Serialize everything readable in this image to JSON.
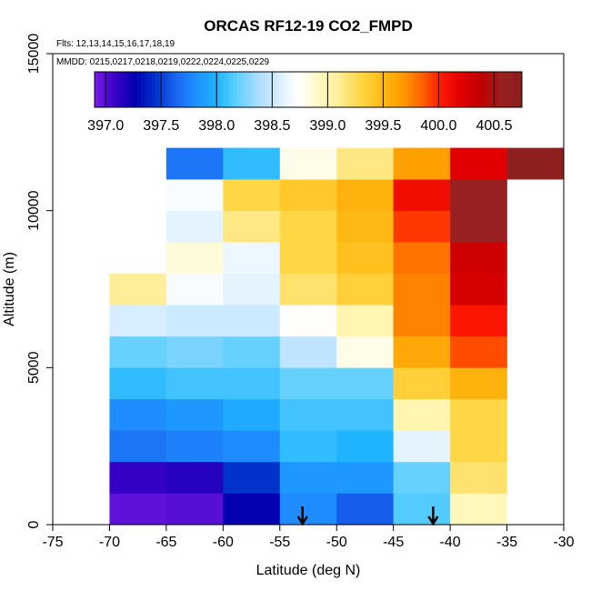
{
  "chart_data": {
    "type": "heatmap",
    "title": "ORCAS RF12-19 CO2_FMPD",
    "flights_label": "Flts: 12,13,14,15,16,17,18,19",
    "dates_label": "MMDD: 0215,0217,0218,0219,0222,0224,0225,0229",
    "xlabel": "Latitude (deg N)",
    "ylabel": "Altitude (m)",
    "xlim": [
      -75,
      -30
    ],
    "ylim": [
      0,
      15000
    ],
    "x_ticks": [
      -75,
      -70,
      -65,
      -60,
      -55,
      -50,
      -45,
      -40,
      -35,
      -30
    ],
    "x_tick_labels": [
      "-75",
      "-70",
      "-65",
      "-60",
      "-55",
      "-50",
      "-45",
      "-40",
      "-35",
      "-30"
    ],
    "y_ticks": [
      0,
      5000,
      10000,
      15000
    ],
    "y_tick_labels": [
      "0",
      "5000",
      "10000",
      "15000"
    ],
    "colorbar": {
      "range": [
        396.9,
        400.75
      ],
      "ticks": [
        397.0,
        397.5,
        398.0,
        398.5,
        399.0,
        399.5,
        400.0,
        400.5
      ],
      "tick_labels": [
        "397.0",
        "397.5",
        "398.0",
        "398.5",
        "399.0",
        "399.5",
        "400.0",
        "400.5"
      ],
      "colors": [
        "#7a1fe6",
        "#3a00c8",
        "#0000b0",
        "#0033cc",
        "#1a66f0",
        "#1e90ff",
        "#20b4ff",
        "#5fd0ff",
        "#a8dcff",
        "#d8eeff",
        "#ffffff",
        "#fff9c4",
        "#ffee99",
        "#ffd84a",
        "#ffbf1a",
        "#ffa000",
        "#ff6a00",
        "#ff1a00",
        "#e00000",
        "#c00000",
        "#9a2020",
        "#8a1f1f"
      ]
    },
    "lat_bins": [
      [
        -70,
        -65
      ],
      [
        -65,
        -60
      ],
      [
        -60,
        -55
      ],
      [
        -55,
        -50
      ],
      [
        -50,
        -45
      ],
      [
        -45,
        -40
      ],
      [
        -40,
        -35
      ],
      [
        -35,
        -30
      ]
    ],
    "alt_bin_size": 1000,
    "co2_by_latbin": [
      [
        396.98,
        397.1,
        397.7,
        397.8,
        398.05,
        398.2,
        398.55,
        399.1
      ],
      [
        397.0,
        397.15,
        397.75,
        397.85,
        398.1,
        398.25,
        398.5,
        398.7,
        398.85,
        398.6,
        398.7,
        397.7
      ],
      [
        397.25,
        397.45,
        397.8,
        397.95,
        398.1,
        398.2,
        398.5,
        398.6,
        398.65,
        399.15,
        399.3,
        398.05
      ],
      [
        397.8,
        397.85,
        398.05,
        398.1,
        398.2,
        398.45,
        398.75,
        399.2,
        399.3,
        399.3,
        399.4,
        398.8
      ],
      [
        397.6,
        397.85,
        398.0,
        398.1,
        398.2,
        398.8,
        399.0,
        399.35,
        399.45,
        399.5,
        399.55,
        399.15
      ],
      [
        398.15,
        398.2,
        398.6,
        399.0,
        399.35,
        399.6,
        399.75,
        399.75,
        399.8,
        399.95,
        400.1,
        399.65
      ],
      [
        398.95,
        399.2,
        399.3,
        399.3,
        399.55,
        399.9,
        400.05,
        400.25,
        400.3,
        400.6,
        400.6,
        400.2
      ],
      [
        null,
        null,
        null,
        null,
        null,
        null,
        null,
        null,
        null,
        null,
        null,
        400.7
      ]
    ],
    "arrow_latitudes": [
      -53,
      -41.5
    ]
  }
}
